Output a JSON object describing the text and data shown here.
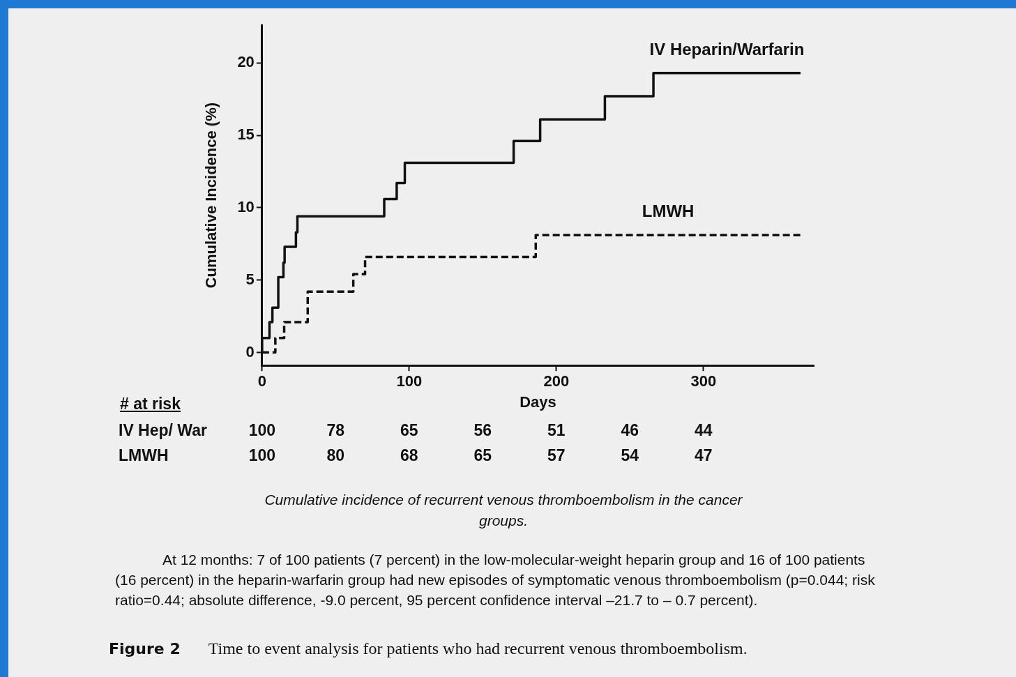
{
  "chart_data": {
    "type": "step",
    "xlabel": "Days",
    "ylabel": "Cumulative Incidence (%)",
    "xlim": [
      0,
      375
    ],
    "xticks": [
      0,
      100,
      200,
      300
    ],
    "ylim": [
      -0.9,
      22.6
    ],
    "yticks": [
      0,
      5,
      10,
      15,
      20
    ],
    "legend": false,
    "grid": false,
    "series": [
      {
        "name": "IV Heparin/Warfarin",
        "color": "#111111",
        "line_style": "solid",
        "x": [
          0,
          0,
          5,
          7,
          11,
          14.5,
          15.3,
          23,
          24,
          83,
          91.5,
          97,
          171,
          189,
          233,
          266,
          366
        ],
        "values": [
          0,
          1,
          2.1,
          3.1,
          5.2,
          6.2,
          7.3,
          8.3,
          9.4,
          10.6,
          11.7,
          13.1,
          14.6,
          16.1,
          17.7,
          19.3,
          19.3
        ]
      },
      {
        "name": "LMWH",
        "color": "#111111",
        "line_style": "dashed",
        "x": [
          0,
          9,
          15,
          31,
          62,
          70,
          186,
          366
        ],
        "values": [
          0,
          1,
          2.1,
          4.2,
          5.4,
          6.6,
          8.1,
          8.1
        ]
      }
    ],
    "annotations": [
      "# at risk",
      "IV Hep/ War",
      "100",
      "78",
      "65",
      "56",
      "51",
      "46",
      "44",
      "LMWH",
      "100",
      "80",
      "68",
      "65",
      "57",
      "54",
      "47",
      "Cumulative incidence of recurrent venous thromboembolism in the cancer groups.",
      "At 12 months:  7 of 100 patients (7 percent) in the low-molecular-weight heparin group and 16 of 100 patients (16 percent) in the heparin-warfarin group had new episodes of symptomatic venous thromboembolism (p=0.044; risk ratio=0.44; absolute difference, -9.0 percent, 95 percent confidence interval –21.7 to – 0.7 percent).",
      "Figure 2",
      "Time to event analysis for patients who had recurrent venous thromboembolism."
    ]
  }
}
